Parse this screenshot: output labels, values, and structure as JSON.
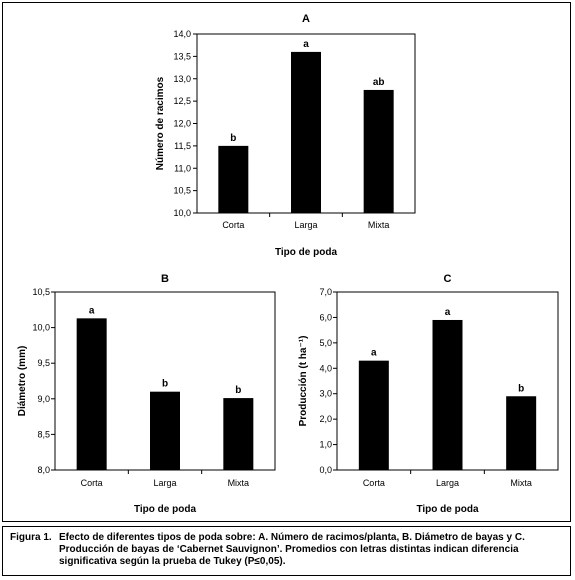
{
  "chart_data": [
    {
      "type": "bar",
      "title": "A",
      "categories": [
        "Corta",
        "Larga",
        "Mixta"
      ],
      "values": [
        11.5,
        13.6,
        12.75
      ],
      "data_labels": [
        "b",
        "a",
        "ab"
      ],
      "xlabel": "Tipo de poda",
      "ylabel": "Número de racimos",
      "ylim": [
        10.0,
        14.0
      ],
      "yticks": [
        "10,0",
        "10,5",
        "11,0",
        "11,5",
        "12,0",
        "12,5",
        "13,0",
        "13,5",
        "14,0"
      ],
      "grid": false,
      "bar_color": "#000000"
    },
    {
      "type": "bar",
      "title": "B",
      "categories": [
        "Corta",
        "Larga",
        "Mixta"
      ],
      "values": [
        10.13,
        9.1,
        9.01
      ],
      "data_labels": [
        "a",
        "b",
        "b"
      ],
      "xlabel": "Tipo de poda",
      "ylabel": "Diámetro (mm)",
      "ylim": [
        8.0,
        10.5
      ],
      "yticks": [
        "8,0",
        "8,5",
        "9,0",
        "9,5",
        "10,0",
        "10,5"
      ],
      "grid": false,
      "bar_color": "#000000"
    },
    {
      "type": "bar",
      "title": "C",
      "categories": [
        "Corta",
        "Larga",
        "Mixta"
      ],
      "values": [
        4.3,
        5.9,
        2.9
      ],
      "data_labels": [
        "a",
        "a",
        "b"
      ],
      "xlabel": "Tipo de poda",
      "ylabel": "Producción (t ha⁻¹)",
      "ylim": [
        0.0,
        7.0
      ],
      "yticks": [
        "0,0",
        "1,0",
        "2,0",
        "3,0",
        "4,0",
        "5,0",
        "6,0",
        "7,0"
      ],
      "grid": false,
      "bar_color": "#000000"
    }
  ],
  "caption": {
    "label": "Figura 1.",
    "text": "Efecto de diferentes tipos de poda sobre: A. Número de racimos/planta, B. Diámetro de bayas y C. Producción de bayas de ‘Cabernet Sauvignon’. Promedios con letras distintas indican diferencia significativa según la prueba de Tukey (P≤0,05)."
  }
}
